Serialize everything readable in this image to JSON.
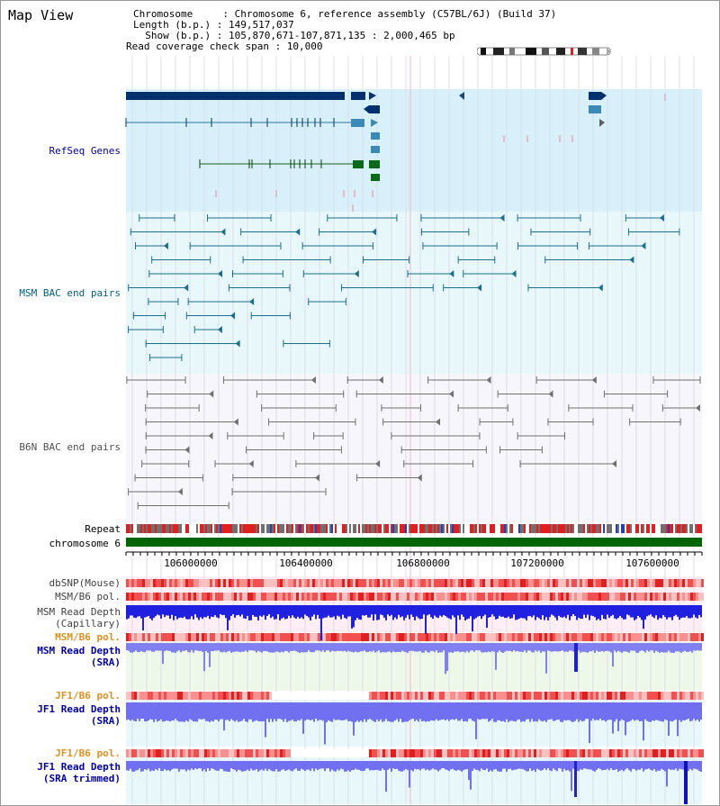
{
  "window_title": "Map View",
  "header": {
    "chromosome_line": "Chromosome     : Chromosome 6, reference assembly (C57BL/6J) (Build 37)",
    "length_line": "Length (b.p.) : 149,517,037",
    "show_line": "  Show (b.p.) : 105,870,671-107,871,135 : 2,000,465 bp",
    "coverage_line": "Read coverage check span : 10,000"
  },
  "tracks": {
    "refseq": "RefSeq Genes",
    "msm_bac": "MSM BAC end pairs",
    "b6n_bac": "B6N BAC end pairs",
    "repeat": "Repeat",
    "chrom": "chromosome 6",
    "dbsnp": "dbSNP(Mouse)",
    "msm_b6_pol": "MSM/B6 pol.",
    "msm_depth_cap": "MSM Read Depth\n(Capillary)",
    "msm_b6_pol_2": "MSM/B6 pol.",
    "msm_depth_sra": "MSM Read Depth\n(SRA)",
    "jf1_b6_pol": "JF1/B6 pol.",
    "jf1_depth_sra": "JF1 Read Depth\n(SRA)",
    "jf1_b6_pol_2": "JF1/B6 pol.",
    "jf1_depth_trim": "JF1 Read Depth\n(SRA trimmed)"
  },
  "axis_ticks": [
    "106000000",
    "106400000",
    "106800000",
    "107200000",
    "107600000"
  ],
  "colors": {
    "refseq_bg": "#d8f0fa",
    "bac_bg": "#e8f8fa",
    "navy": "#00306e",
    "msm_teal": "#1a6f8a",
    "b6n_gray": "#707070",
    "pol_orange": "#e09020",
    "depth_blue": "#1010cc",
    "chrom_green": "#006400"
  }
}
